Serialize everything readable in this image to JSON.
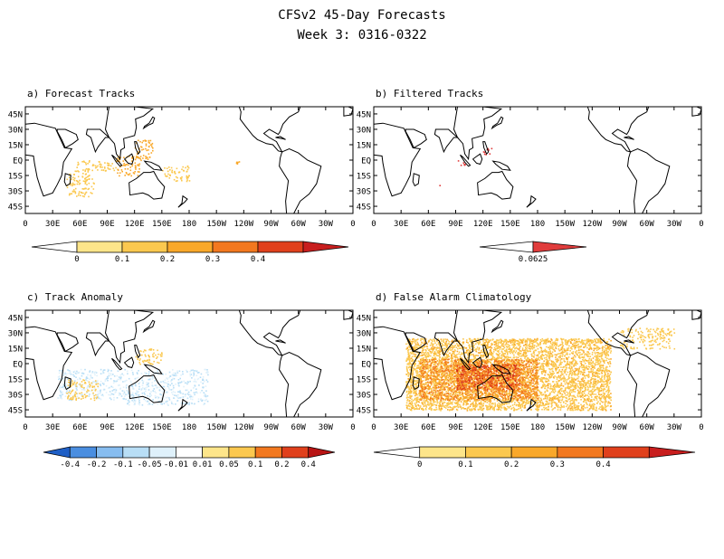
{
  "figure": {
    "title": "CFSv2 45-Day Forecasts",
    "subtitle": "Week 3: 0316-0322"
  },
  "chart_data": [
    {
      "type": "heatmap",
      "panel_title": "a) Forecast Tracks",
      "x_ticks": [
        "0",
        "30E",
        "60E",
        "90E",
        "120E",
        "150E",
        "180",
        "150W",
        "120W",
        "90W",
        "60W",
        "30W",
        "0"
      ],
      "y_ticks": [
        "45N",
        "30N",
        "15N",
        "EQ",
        "15S",
        "30S",
        "45S"
      ],
      "colorbar": {
        "labels": [
          "0",
          "0.1",
          "0.2",
          "0.3",
          "0.4"
        ],
        "colors": [
          "#ffffff",
          "#fde58a",
          "#fbc84f",
          "#f9a82a",
          "#f2781f",
          "#e0401c",
          "#c81e1e"
        ]
      },
      "regions": [
        {
          "lon": [
            45,
            75
          ],
          "lat": [
            -35,
            -10
          ],
          "level": 0.05
        },
        {
          "lon": [
            55,
            100
          ],
          "lat": [
            -10,
            0
          ],
          "level": 0.05
        },
        {
          "lon": [
            100,
            125
          ],
          "lat": [
            -15,
            5
          ],
          "level": 0.1
        },
        {
          "lon": [
            120,
            140
          ],
          "lat": [
            0,
            20
          ],
          "level": 0.1
        },
        {
          "lon": [
            150,
            180
          ],
          "lat": [
            -20,
            -5
          ],
          "level": 0.05
        },
        {
          "lon": [
            225,
            235
          ],
          "lat": [
            -5,
            0
          ],
          "level": 0.1
        }
      ]
    },
    {
      "type": "heatmap",
      "panel_title": "b) Filtered Tracks",
      "x_ticks": [
        "0",
        "30E",
        "60E",
        "90E",
        "120E",
        "150E",
        "180",
        "150W",
        "120W",
        "90W",
        "60W",
        "30W",
        "0"
      ],
      "y_ticks": [
        "45N",
        "30N",
        "15N",
        "EQ",
        "15S",
        "30S",
        "45S"
      ],
      "colorbar": {
        "labels": [
          "0.0625"
        ],
        "colors": [
          "#ffffff",
          "#e03c3c"
        ]
      },
      "regions": [
        {
          "lon": [
            90,
            100
          ],
          "lat": [
            -5,
            0
          ],
          "level": 0.0625
        },
        {
          "lon": [
            120,
            130
          ],
          "lat": [
            5,
            12
          ],
          "level": 0.0625
        },
        {
          "lon": [
            70,
            75
          ],
          "lat": [
            -25,
            -22
          ],
          "level": 0.0625
        }
      ]
    },
    {
      "type": "heatmap",
      "panel_title": "c) Track Anomaly",
      "x_ticks": [
        "0",
        "30E",
        "60E",
        "90E",
        "120E",
        "150E",
        "180",
        "150W",
        "120W",
        "90W",
        "60W",
        "30W",
        "0"
      ],
      "y_ticks": [
        "45N",
        "30N",
        "15N",
        "EQ",
        "15S",
        "30S",
        "45S"
      ],
      "colorbar": {
        "labels": [
          "-0.4",
          "-0.2",
          "-0.1",
          "-0.05",
          "-0.01",
          "0.01",
          "0.05",
          "0.1",
          "0.2",
          "0.4"
        ],
        "colors": [
          "#1f5fc6",
          "#4a8ee0",
          "#87bdf0",
          "#b8def6",
          "#dff1fb",
          "#ffffff",
          "#fde58a",
          "#fbc84f",
          "#f2781f",
          "#e0401c",
          "#b81414"
        ]
      },
      "regions": [
        {
          "lon": [
            35,
            110
          ],
          "lat": [
            -35,
            -5
          ],
          "level": -0.02
        },
        {
          "lon": [
            110,
            200
          ],
          "lat": [
            -40,
            -5
          ],
          "level": -0.02
        },
        {
          "lon": [
            120,
            150
          ],
          "lat": [
            0,
            15
          ],
          "level": 0.1
        },
        {
          "lon": [
            45,
            80
          ],
          "lat": [
            -35,
            -15
          ],
          "level": 0.1
        }
      ]
    },
    {
      "type": "heatmap",
      "panel_title": "d) False Alarm Climatology",
      "x_ticks": [
        "0",
        "30E",
        "60E",
        "90E",
        "120E",
        "150E",
        "180",
        "150W",
        "120W",
        "90W",
        "60W",
        "30W",
        "0"
      ],
      "y_ticks": [
        "45N",
        "30N",
        "15N",
        "EQ",
        "15S",
        "30S",
        "45S"
      ],
      "colorbar": {
        "labels": [
          "0",
          "0.1",
          "0.2",
          "0.3",
          "0.4"
        ],
        "colors": [
          "#ffffff",
          "#fde58a",
          "#fbc84f",
          "#f9a82a",
          "#f2781f",
          "#e0401c",
          "#c81e1e"
        ]
      },
      "regions": [
        {
          "lon": [
            35,
            260
          ],
          "lat": [
            -45,
            25
          ],
          "level": 0.08
        },
        {
          "lon": [
            50,
            180
          ],
          "lat": [
            -35,
            5
          ],
          "level": 0.2
        },
        {
          "lon": [
            90,
            160
          ],
          "lat": [
            -25,
            0
          ],
          "level": 0.3
        },
        {
          "lon": [
            270,
            330
          ],
          "lat": [
            15,
            35
          ],
          "level": 0.06
        }
      ]
    }
  ]
}
